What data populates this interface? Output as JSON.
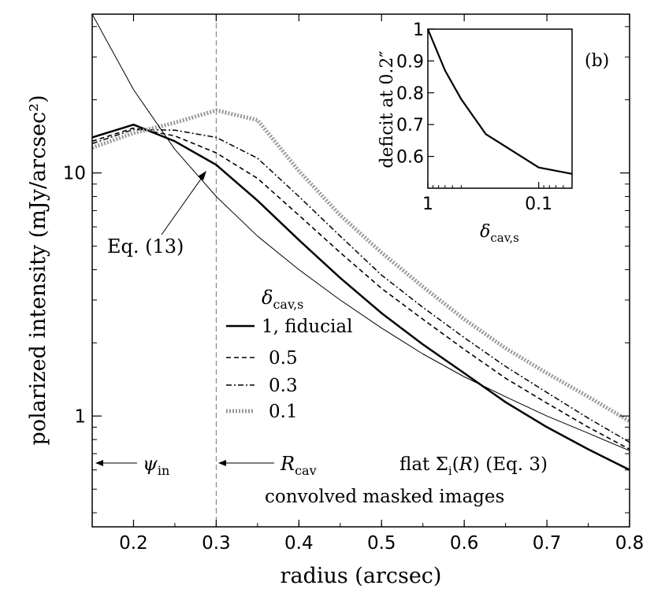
{
  "chart_data": [
    {
      "type": "line",
      "xlabel": "radius (arcsec)",
      "ylabel": "polarized intensity (mJy/arcsec²)",
      "y_scale": "log",
      "xlim": [
        0.15,
        0.8
      ],
      "ylim": [
        0.35,
        45
      ],
      "x_ticks": [
        "0.2",
        "0.3",
        "0.4",
        "0.5",
        "0.6",
        "0.7",
        "0.8"
      ],
      "y_ticks": [
        "1",
        "10"
      ],
      "x_tick_values": [
        0.2,
        0.3,
        0.4,
        0.5,
        0.6,
        0.7,
        0.8
      ],
      "y_tick_values": [
        1,
        10
      ],
      "legend": {
        "title": "δcav,s",
        "placement": "center",
        "entries": [
          "1, fiducial",
          "0.5",
          "0.3",
          "0.1"
        ]
      },
      "series": [
        {
          "name": "1, fiducial",
          "style": "solid-thick",
          "x": [
            0.15,
            0.2,
            0.25,
            0.3,
            0.35,
            0.4,
            0.45,
            0.5,
            0.55,
            0.6,
            0.65,
            0.7,
            0.75,
            0.8
          ],
          "y": [
            14.0,
            15.8,
            13.5,
            10.8,
            7.7,
            5.3,
            3.7,
            2.65,
            1.97,
            1.5,
            1.14,
            0.9,
            0.73,
            0.6
          ]
        },
        {
          "name": "0.5",
          "style": "dashed",
          "x": [
            0.15,
            0.2,
            0.25,
            0.3,
            0.35,
            0.4,
            0.45,
            0.5,
            0.55,
            0.6,
            0.65,
            0.7,
            0.75,
            0.8
          ],
          "y": [
            13.5,
            15.3,
            14.2,
            12.1,
            9.5,
            6.7,
            4.7,
            3.35,
            2.5,
            1.88,
            1.43,
            1.13,
            0.9,
            0.73
          ]
        },
        {
          "name": "0.3",
          "style": "dash-dot",
          "x": [
            0.15,
            0.2,
            0.25,
            0.3,
            0.35,
            0.4,
            0.45,
            0.5,
            0.55,
            0.6,
            0.65,
            0.7,
            0.75,
            0.8
          ],
          "y": [
            13.2,
            15.1,
            15.0,
            14.0,
            11.5,
            8.0,
            5.5,
            3.8,
            2.8,
            2.1,
            1.6,
            1.25,
            0.98,
            0.78
          ]
        },
        {
          "name": "0.1",
          "style": "dotted",
          "x": [
            0.15,
            0.2,
            0.25,
            0.3,
            0.35,
            0.4,
            0.45,
            0.5,
            0.55,
            0.6,
            0.65,
            0.7,
            0.75,
            0.8
          ],
          "y": [
            12.7,
            14.6,
            16.1,
            18.1,
            16.5,
            10.2,
            6.7,
            4.7,
            3.4,
            2.5,
            1.9,
            1.5,
            1.2,
            0.95
          ]
        },
        {
          "name": "Eq. (13)",
          "style": "solid-thin",
          "x": [
            0.15,
            0.2,
            0.25,
            0.3,
            0.35,
            0.4,
            0.45,
            0.5,
            0.55,
            0.6,
            0.65,
            0.7,
            0.75,
            0.8
          ],
          "y": [
            45,
            22,
            12.5,
            8.0,
            5.5,
            4.0,
            3.0,
            2.3,
            1.8,
            1.45,
            1.2,
            1.0,
            0.85,
            0.72
          ]
        }
      ],
      "annotations": {
        "eq13": "Eq. (13)",
        "psi_in": "ψin",
        "r_cav": "Rcav",
        "flat": "flat Σi(R) (Eq. 3)",
        "convolved": "convolved masked images"
      },
      "vline_x": 0.3
    },
    {
      "type": "line",
      "panel_label": "(b)",
      "xlabel": "δcav,s",
      "ylabel": "deficit at 0.2″",
      "x_scale": "log-reversed",
      "xlim": [
        1,
        0.05
      ],
      "ylim": [
        0.5,
        1.0
      ],
      "x_ticks": [
        "1",
        "0.1"
      ],
      "y_ticks": [
        "0.6",
        "0.7",
        "0.8",
        "0.9",
        "1"
      ],
      "x_tick_values": [
        1,
        0.1
      ],
      "y_tick_values": [
        0.6,
        0.7,
        0.8,
        0.9,
        1
      ],
      "series": [
        {
          "x": [
            1,
            0.7,
            0.5,
            0.3,
            0.1,
            0.05
          ],
          "y": [
            1.0,
            0.87,
            0.78,
            0.67,
            0.565,
            0.545
          ]
        }
      ]
    }
  ]
}
